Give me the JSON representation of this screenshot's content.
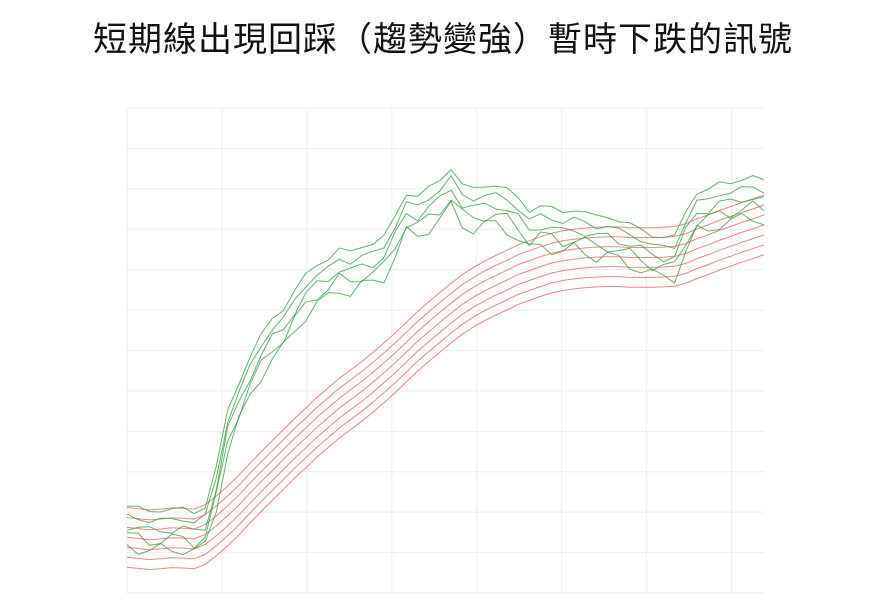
{
  "chart_data": {
    "type": "line",
    "title": "短期線出現回踩（趨勢變強）暫時下跌的訊號",
    "xlabel": "",
    "ylabel": "",
    "grid": true,
    "legend": "none",
    "x": [
      0,
      1,
      2,
      3,
      4,
      5,
      6,
      7,
      8,
      9,
      10,
      11,
      12,
      13,
      14,
      15,
      16,
      17,
      18,
      19,
      20,
      21,
      22,
      23,
      24,
      25,
      26,
      27,
      28,
      29,
      30,
      31,
      32,
      33,
      34,
      35,
      36,
      37,
      38,
      39,
      40,
      41,
      42,
      43,
      44,
      45,
      46,
      47,
      48,
      49,
      50,
      51,
      52,
      53,
      54,
      55,
      56,
      57,
      58,
      59,
      60,
      61,
      62,
      63,
      64,
      65,
      66,
      67,
      68,
      69,
      70,
      71,
      72,
      73,
      74,
      75,
      76,
      77,
      78,
      79,
      80
    ],
    "xlim": [
      0,
      80
    ],
    "ylim": [
      0,
      122
    ],
    "colors": {
      "short_term": "#2e9c3a",
      "long_term": "#f25a5a"
    },
    "short_term_base": [
      21.8,
      21.5,
      20.6,
      20.7,
      21.0,
      21.3,
      20.2,
      21.6,
      31.7,
      45.9,
      52.8,
      59.3,
      64.9,
      69.1,
      71.4,
      76.0,
      80.1,
      82.6,
      84.0,
      86.5,
      85.9,
      87.2,
      87.8,
      89.7,
      94.9,
      100.4,
      99.7,
      102.0,
      103.9,
      106.8,
      102.7,
      101.8,
      102.4,
      102.5,
      101.6,
      99.4,
      96.1,
      97.4,
      96.9,
      95.8,
      96.4,
      95.7,
      94.8,
      94.7,
      93.6,
      92.8,
      91.5,
      89.9,
      89.4,
      89.7,
      96.0,
      100.7,
      101.4,
      103.1,
      103.2,
      104.0,
      104.7,
      103.8
    ],
    "short_term_offsets": [
      0,
      -2.5,
      -5.0,
      -7.5,
      -10.0
    ],
    "long_term_base": [
      21.5,
      21.2,
      20.9,
      21.1,
      21.4,
      21.3,
      21.1,
      22.2,
      24.4,
      26.9,
      29.6,
      32.6,
      35.5,
      38.3,
      41.1,
      43.9,
      46.5,
      49.2,
      51.6,
      54.0,
      56.1,
      58.2,
      60.5,
      62.9,
      65.4,
      68.1,
      70.8,
      73.2,
      75.6,
      77.9,
      80.1,
      81.9,
      83.5,
      84.9,
      86.2,
      87.6,
      88.6,
      89.6,
      90.5,
      91.1,
      91.5,
      91.8,
      92.0,
      92.1,
      92.1,
      91.9,
      91.9,
      91.9,
      92.0,
      92.2,
      92.9,
      94.1,
      95.1,
      96.2,
      97.2,
      98.2,
      99.1,
      100.1
    ],
    "long_term_offsets": [
      0,
      -2.5,
      -5.0,
      -7.5,
      -10.0,
      -12.5,
      -15.0
    ]
  }
}
